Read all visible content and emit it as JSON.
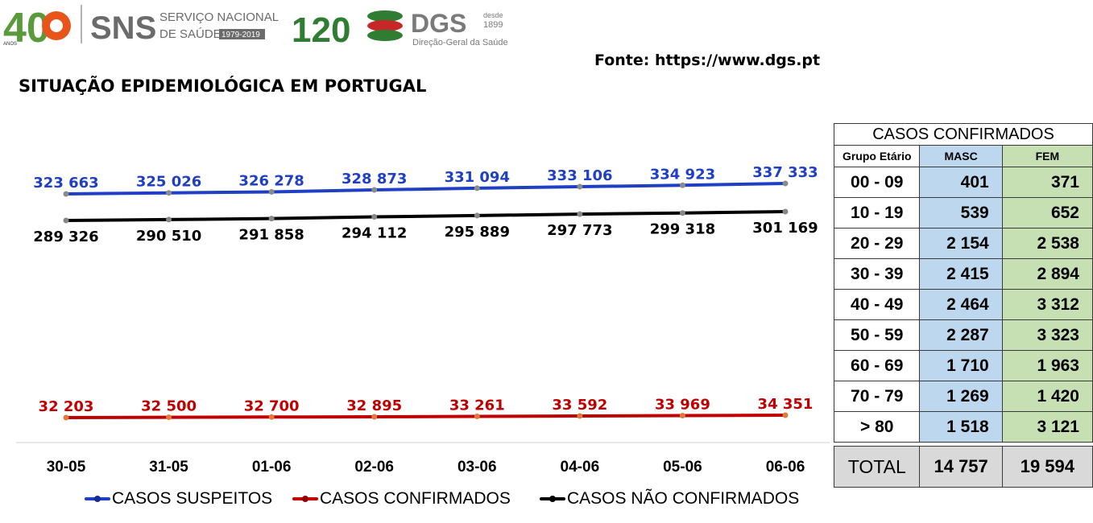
{
  "header": {
    "logo_40_label": "40",
    "sns_brand": "SNS",
    "sns_name_line1": "SERVIÇO NACIONAL",
    "sns_name_line2": "DE SAÚDE",
    "sns_years": "1979-2019",
    "anos_label": "ANOS",
    "dgs_120": "120",
    "dgs_brand": "DGS",
    "dgs_since": "desde",
    "dgs_year": "1899",
    "dgs_name": "Direção-Geral da Saúde"
  },
  "source": "Fonte: https://www.dgs.pt",
  "title": "SITUAÇÃO EPIDEMIOLÓGICA EM PORTUGAL",
  "chart_data": {
    "type": "line",
    "categories": [
      "30-05",
      "31-05",
      "01-06",
      "02-06",
      "03-06",
      "04-06",
      "05-06",
      "06-06"
    ],
    "series": [
      {
        "name": "CASOS SUSPEITOS",
        "color": "#1f3fc4",
        "values": [
          323663,
          325026,
          326278,
          328873,
          331094,
          333106,
          334923,
          337333
        ],
        "labels": [
          "323 663",
          "325 026",
          "326 278",
          "328 873",
          "331 094",
          "333 106",
          "334 923",
          "337 333"
        ]
      },
      {
        "name": "CASOS CONFIRMADOS",
        "color": "#c00000",
        "values": [
          32203,
          32500,
          32700,
          32895,
          33261,
          33592,
          33969,
          34351
        ],
        "labels": [
          "32 203",
          "32 500",
          "32 700",
          "32 895",
          "33 261",
          "33 592",
          "33 969",
          "34 351"
        ]
      },
      {
        "name": "CASOS NÃO CONFIRMADOS",
        "color": "#000000",
        "values": [
          289326,
          290510,
          291858,
          294112,
          295889,
          297773,
          299318,
          301169
        ],
        "labels": [
          "289 326",
          "290 510",
          "291 858",
          "294 112",
          "295 889",
          "297 773",
          "299 318",
          "301 169"
        ]
      }
    ],
    "legend_position": "bottom",
    "grid": false
  },
  "table": {
    "title": "CASOS CONFIRMADOS",
    "headers": [
      "Grupo Etário",
      "MASC",
      "FEM"
    ],
    "rows": [
      [
        "00 - 09",
        "401",
        "371"
      ],
      [
        "10 - 19",
        "539",
        "652"
      ],
      [
        "20 - 29",
        "2 154",
        "2 538"
      ],
      [
        "30 - 39",
        "2 415",
        "2 894"
      ],
      [
        "40 - 49",
        "2 464",
        "3 312"
      ],
      [
        "50 - 59",
        "2 287",
        "3 323"
      ],
      [
        "60 - 69",
        "1 710",
        "1 963"
      ],
      [
        "70 - 79",
        "1 269",
        "1 420"
      ],
      [
        "> 80",
        "1 518",
        "3 121"
      ]
    ],
    "total": [
      "TOTAL",
      "14 757",
      "19 594"
    ]
  }
}
